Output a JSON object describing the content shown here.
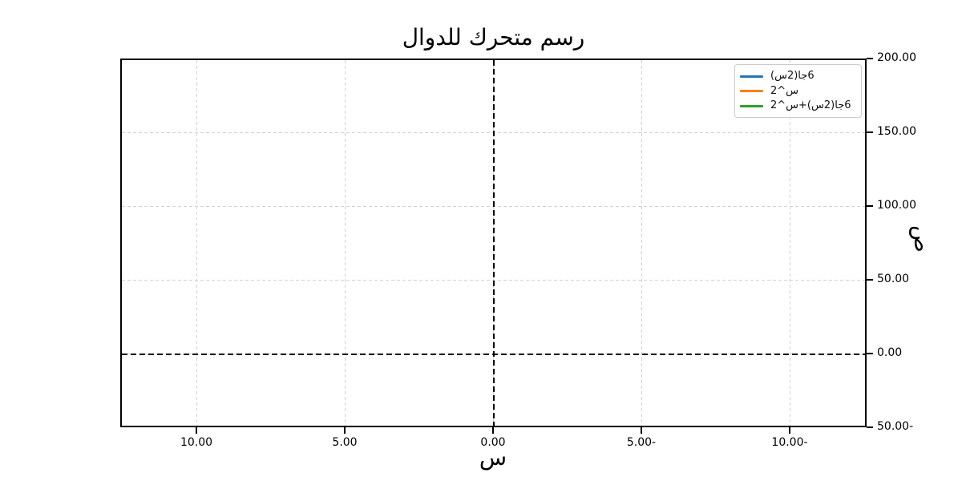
{
  "window": {
    "background": "#ffffff"
  },
  "chart_data": {
    "type": "line",
    "title": "رسم متحرك للدوال",
    "xlabel": "س",
    "ylabel": "ص",
    "x_axis_inverted": true,
    "xlim": [
      12.57,
      -12.57
    ],
    "ylim": [
      -50,
      200
    ],
    "x_tick_labels": [
      "10.00",
      "5.00",
      "0.00",
      "5.00-",
      "10.00-"
    ],
    "x_tick_values": [
      10,
      5,
      0,
      -5,
      -10
    ],
    "y_tick_labels": [
      "200.00",
      "150.00",
      "100.00",
      "50.00",
      "0.00",
      "50.00-"
    ],
    "y_tick_values": [
      200,
      150,
      100,
      50,
      0,
      -50
    ],
    "y_axis_side": "right",
    "grid": true,
    "grid_line_style": "dashed",
    "grid_color": "#d2d2d2",
    "legend_position": "upper-right",
    "series": [
      {
        "name": "6جا(2س)",
        "color": "#1f77b4",
        "x": [],
        "y": []
      },
      {
        "name": "س^2",
        "color": "#ff7f0e",
        "x": [],
        "y": []
      },
      {
        "name": "6جا(2س)+س^2",
        "color": "#2ca02c",
        "x": [],
        "y": []
      }
    ],
    "reference_lines": [
      {
        "orientation": "horizontal",
        "value": 0,
        "color": "#000000",
        "style": "dashed"
      },
      {
        "orientation": "vertical",
        "value": 0,
        "color": "#000000",
        "style": "dashed"
      }
    ]
  }
}
